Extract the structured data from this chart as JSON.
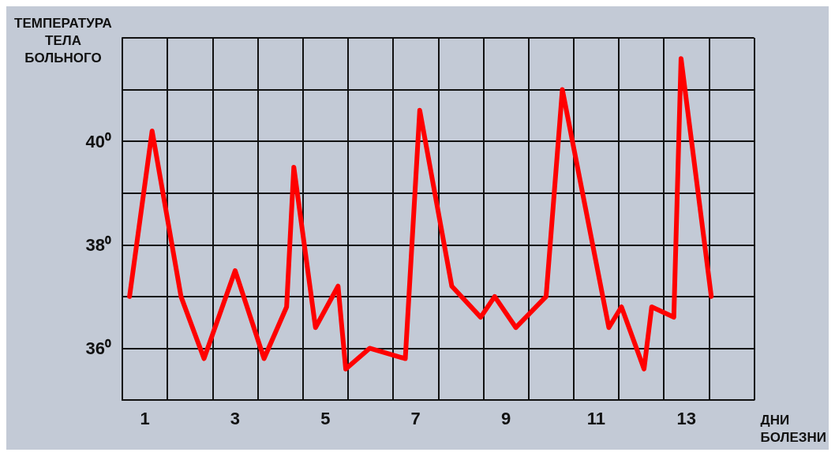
{
  "chart_data": {
    "type": "line",
    "ylabel": "ТЕМПЕРАТУРА\nТЕЛА\nБОЛЬНОГО",
    "xlabel": "ДНИ\nБОЛЕЗНИ",
    "x": [
      0.66,
      1.16,
      1.8,
      2.31,
      3.0,
      3.64,
      4.14,
      4.3,
      4.78,
      5.28,
      5.45,
      5.98,
      6.77,
      7.09,
      7.8,
      8.44,
      8.75,
      9.22,
      9.89,
      10.25,
      11.28,
      11.56,
      12.06,
      12.23,
      12.72,
      12.88,
      13.55
    ],
    "series": [
      {
        "color": "#ff0000",
        "values": [
          37.0,
          40.2,
          37.0,
          35.8,
          37.5,
          35.8,
          36.8,
          39.5,
          36.4,
          37.2,
          35.6,
          36.0,
          35.8,
          40.6,
          37.2,
          36.6,
          37.0,
          36.4,
          37.0,
          41.0,
          36.4,
          36.8,
          35.6,
          36.8,
          36.6,
          41.6,
          37.0
        ]
      }
    ],
    "xlim": [
      0.5,
      14.5
    ],
    "xticks": [
      {
        "value": 0.5,
        "label": null
      },
      1,
      {
        "value": 1.5,
        "label": null
      },
      {
        "value": 2.5,
        "label": null
      },
      3,
      {
        "value": 3.5,
        "label": null
      },
      {
        "value": 4.5,
        "label": null
      },
      5,
      {
        "value": 5.5,
        "label": null
      },
      {
        "value": 6.5,
        "label": null
      },
      7,
      {
        "value": 7.5,
        "label": null
      },
      {
        "value": 8.5,
        "label": null
      },
      9,
      {
        "value": 9.5,
        "label": null
      },
      {
        "value": 10.5,
        "label": null
      },
      11,
      {
        "value": 11.5,
        "label": null
      },
      {
        "value": 12.5,
        "label": null
      },
      13,
      {
        "value": 13.5,
        "label": null
      },
      {
        "value": 14.5,
        "label": null
      }
    ],
    "ylim": [
      35,
      42
    ],
    "yticks": [
      {
        "value": 35,
        "label": null
      },
      {
        "value": 36,
        "label": "36⁰"
      },
      {
        "value": 37,
        "label": null
      },
      {
        "value": 38,
        "label": "38⁰"
      },
      {
        "value": 39,
        "label": null
      },
      {
        "value": 40,
        "label": "40⁰"
      },
      {
        "value": 41,
        "label": null
      },
      {
        "value": 42,
        "label": null
      }
    ],
    "grid": true,
    "marker": "none",
    "line_style": "solid"
  }
}
